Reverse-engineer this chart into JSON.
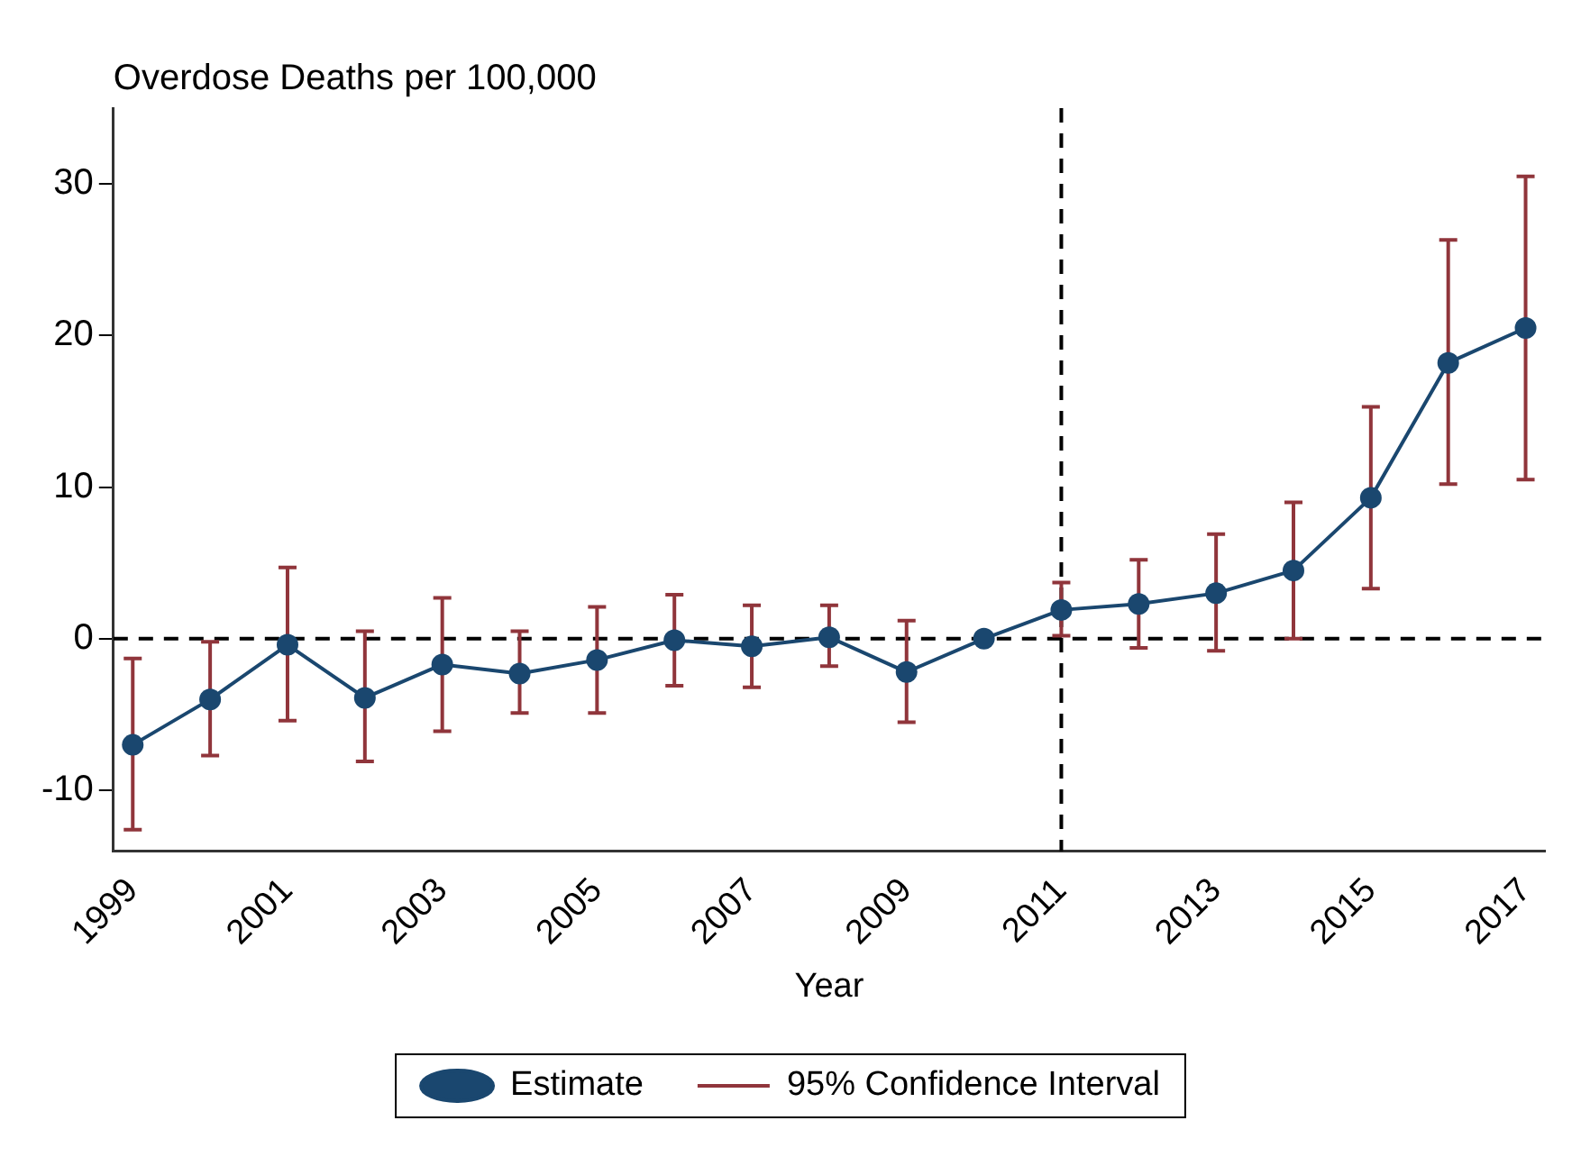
{
  "chart_data": {
    "type": "line",
    "ylabel": "Overdose Deaths per 100,000",
    "xlabel": "Year",
    "x": [
      1999,
      2000,
      2001,
      2002,
      2003,
      2004,
      2005,
      2006,
      2007,
      2008,
      2009,
      2010,
      2011,
      2012,
      2013,
      2014,
      2015,
      2016,
      2017
    ],
    "series": [
      {
        "name": "Estimate",
        "color": "#1a476f",
        "values": [
          -7.0,
          -4.0,
          -0.4,
          -3.9,
          -1.7,
          -2.3,
          -1.4,
          -0.1,
          -0.5,
          0.1,
          -2.2,
          0,
          1.9,
          2.3,
          3.0,
          4.5,
          9.3,
          18.2,
          20.5
        ],
        "errors": [
          [
            -12.6,
            -1.3
          ],
          [
            -7.7,
            -0.2
          ],
          [
            -5.4,
            4.7
          ],
          [
            -8.1,
            0.5
          ],
          [
            -6.1,
            2.7
          ],
          [
            -4.9,
            0.5
          ],
          [
            -4.9,
            2.1
          ],
          [
            -3.1,
            2.9
          ],
          [
            -3.2,
            2.2
          ],
          [
            -1.8,
            2.2
          ],
          [
            -5.5,
            1.2
          ],
          null,
          [
            0.2,
            3.7
          ],
          [
            -0.6,
            5.2
          ],
          [
            -0.8,
            6.9
          ],
          [
            0.0,
            9.0
          ],
          [
            3.3,
            15.3
          ],
          [
            10.2,
            26.3
          ],
          [
            10.5,
            30.5
          ]
        ]
      }
    ],
    "annotations": [
      "95% Confidence Interval"
    ],
    "xlim": [
      1998.75,
      2017.25
    ],
    "xticks": [
      1999,
      2001,
      2003,
      2005,
      2007,
      2009,
      2011,
      2013,
      2015,
      2017
    ],
    "ylim": [
      -14,
      35
    ],
    "yticks": [
      -10,
      0,
      10,
      20,
      30
    ],
    "ref_lines": [
      {
        "axis": "y",
        "value": 0,
        "line_style": "dashed",
        "color": "#000000"
      },
      {
        "axis": "x",
        "value": 2011,
        "line_style": "dashed",
        "color": "#000000"
      }
    ],
    "marker": "circle",
    "line_style": "solid",
    "grid": false,
    "legend": "bottom"
  }
}
